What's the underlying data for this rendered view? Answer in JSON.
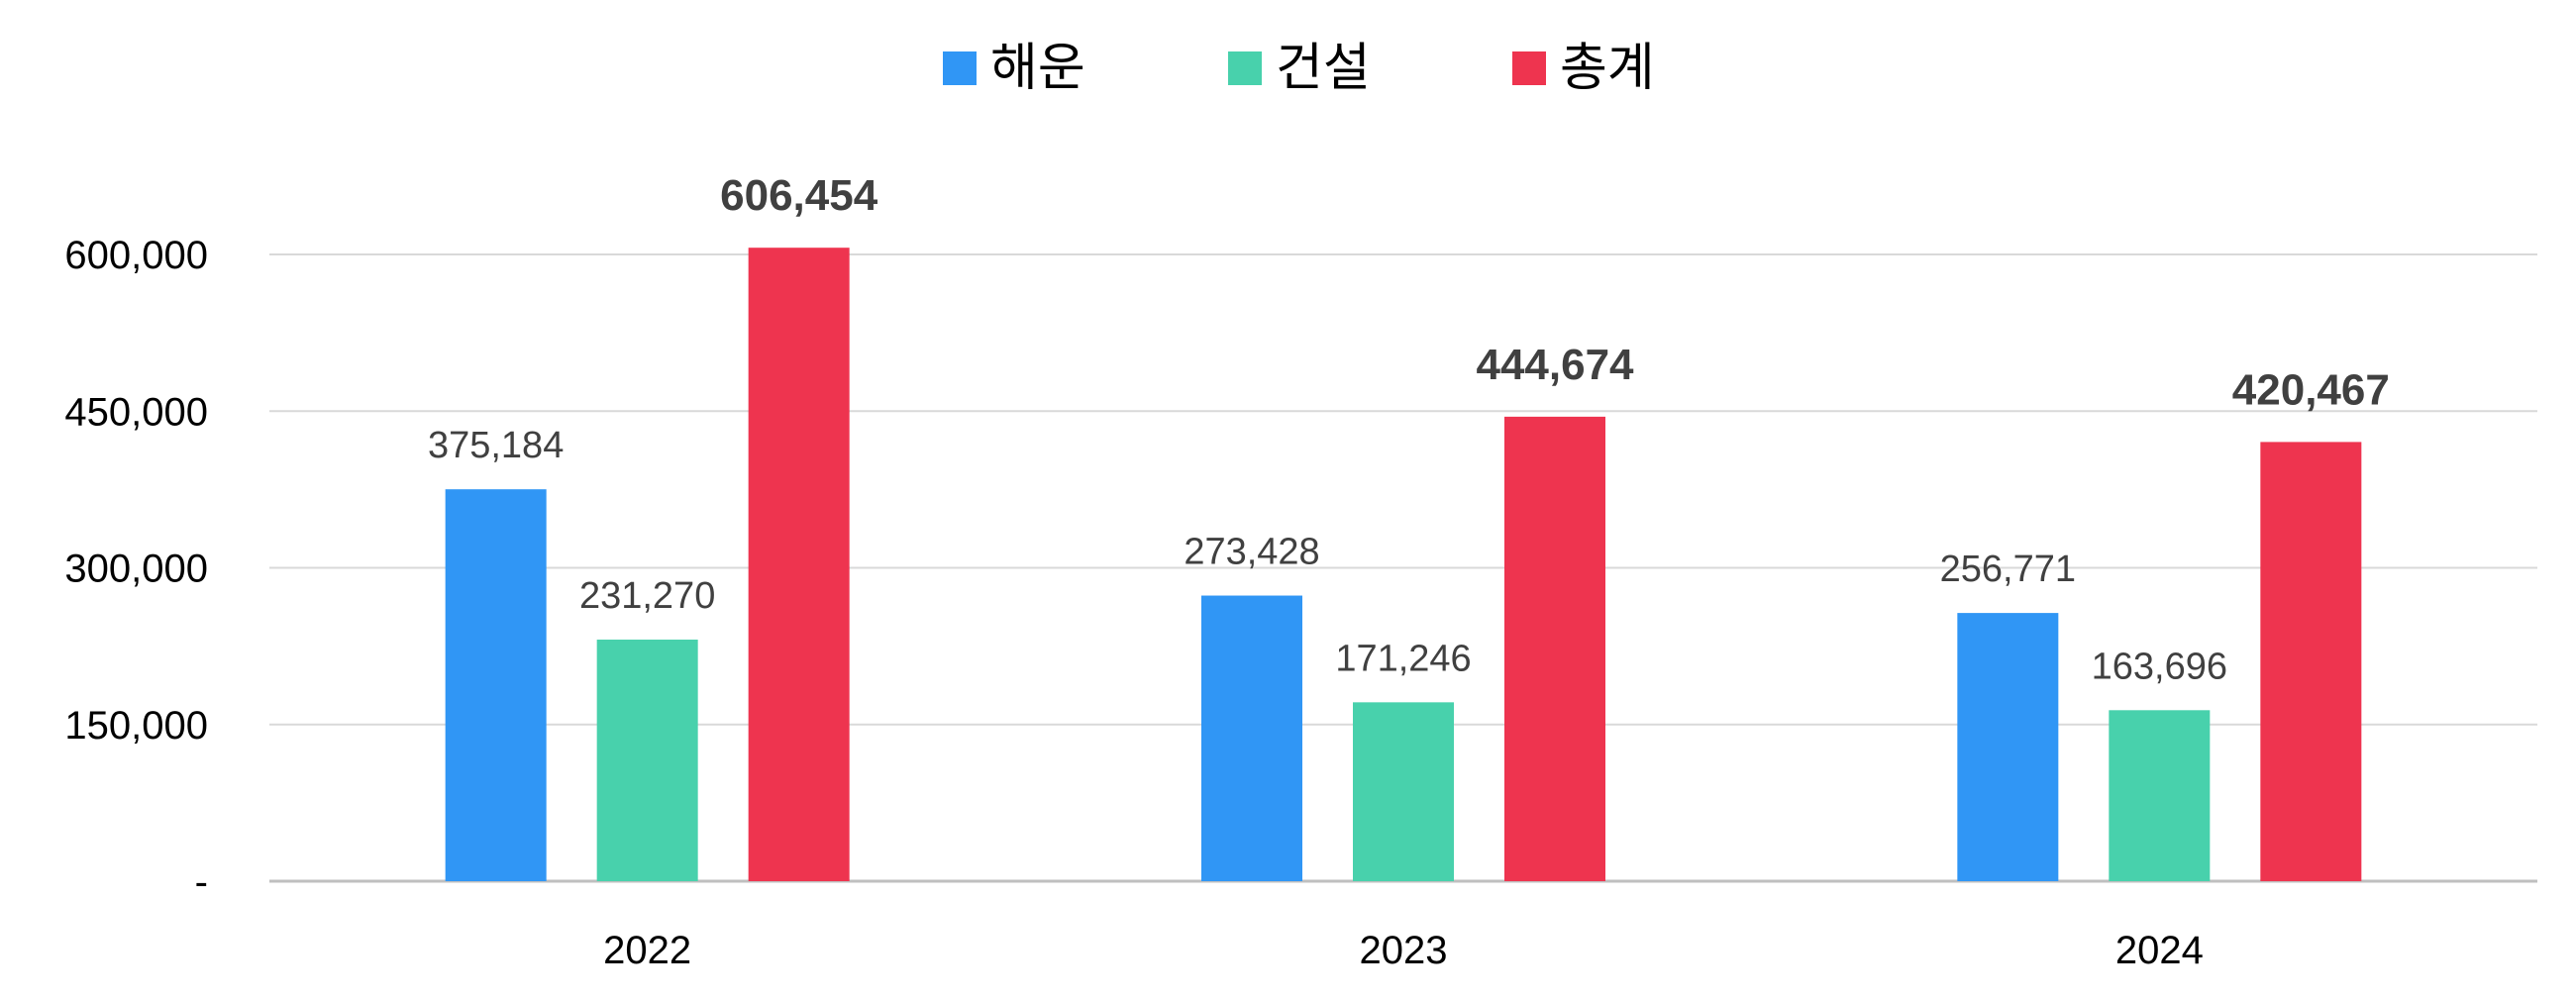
{
  "chart_data": {
    "type": "bar",
    "categories": [
      "2022",
      "2023",
      "2024"
    ],
    "series": [
      {
        "name": "해운",
        "color": "#3096F5",
        "values": [
          375184,
          273428,
          256771
        ],
        "labels": [
          "375,184",
          "273,428",
          "256,771"
        ]
      },
      {
        "name": "건설",
        "color": "#48D1AC",
        "values": [
          231270,
          171246,
          163696
        ],
        "labels": [
          "231,270",
          "171,246",
          "163,696"
        ]
      },
      {
        "name": "총계",
        "color": "#EE344F",
        "values": [
          606454,
          444674,
          420467
        ],
        "labels": [
          "606,454",
          "444,674",
          "420,467"
        ],
        "label_colors": [
          "#000000",
          "#000000",
          "#FF0000"
        ]
      }
    ],
    "ylim": [
      0,
      600000
    ],
    "yticks": [
      0,
      150000,
      300000,
      450000,
      600000
    ],
    "ytick_labels": [
      "-",
      "150,000",
      "300,000",
      "450,000",
      "600,000"
    ],
    "title": "",
    "xlabel": "",
    "ylabel": "",
    "grid": true,
    "legend_position": "top-center",
    "colors": {
      "grid": "#D9D9D9",
      "axis": "#BFBFBF"
    }
  }
}
